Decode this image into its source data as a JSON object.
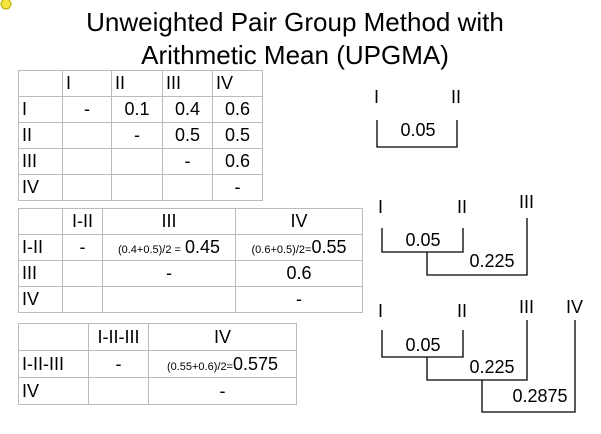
{
  "title": {
    "line1": "Unweighted Pair Group Method with",
    "line2": "Arithmetic Mean (UPGMA)"
  },
  "tables": [
    {
      "rows": [
        [
          null,
          "I",
          "II",
          "III",
          "IV"
        ],
        [
          "I",
          "-",
          "0.1",
          "0.4",
          "0.6"
        ],
        [
          "II",
          null,
          "-",
          "0.5",
          "0.5"
        ],
        [
          "III",
          null,
          null,
          "-",
          "0.6"
        ],
        [
          "IV",
          null,
          null,
          null,
          "-"
        ]
      ]
    },
    {
      "rows": [
        [
          null,
          "I-II",
          "III",
          "IV"
        ],
        [
          "I-II",
          "-",
          {
            "formula": "(0.4+0.5)/2 =",
            "result": "0.45"
          },
          {
            "formula": "(0.6+0.5)/2=",
            "result": "0.55"
          }
        ],
        [
          "III",
          null,
          "-",
          "0.6"
        ],
        [
          "IV",
          null,
          null,
          "-"
        ]
      ]
    },
    {
      "rows": [
        [
          null,
          "I-II-III",
          "IV"
        ],
        [
          "I-II-III",
          "-",
          {
            "formula": "(0.55+0.6)/2=",
            "result": "0.575"
          }
        ],
        [
          "IV",
          null,
          "-"
        ]
      ]
    }
  ],
  "dendrograms": [
    {
      "leaves": [
        "I",
        "II"
      ],
      "heights": [
        "0.05"
      ]
    },
    {
      "leaves": [
        "I",
        "II",
        "III"
      ],
      "heights": [
        "0.05",
        "0.225"
      ]
    },
    {
      "leaves": [
        "I",
        "II",
        "III",
        "IV"
      ],
      "heights": [
        "0.05",
        "0.225",
        "0.2875"
      ]
    }
  ]
}
